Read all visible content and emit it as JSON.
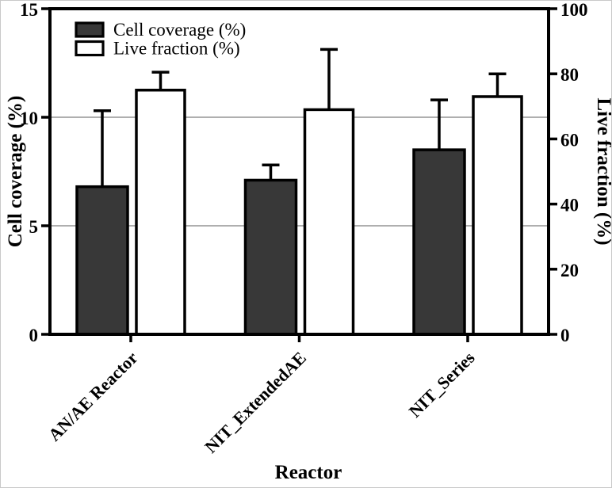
{
  "chart_data": {
    "type": "bar",
    "title": "",
    "xlabel": "Reactor",
    "ylabel_left": "Cell coverage (%)",
    "ylabel_right": "Live fraction (%)",
    "categories": [
      "AN/AE Reactor",
      "NIT_ExtendedAE",
      "NIT_Series"
    ],
    "axes": {
      "left": {
        "min": 0,
        "max": 15,
        "ticks": [
          0,
          5,
          10,
          15
        ]
      },
      "right": {
        "min": 0,
        "max": 100,
        "ticks": [
          0,
          20,
          40,
          60,
          80,
          100
        ]
      }
    },
    "gridlines_at_left_values": [
      5,
      10
    ],
    "grid": true,
    "legend_position": "top-left",
    "series": [
      {
        "name": "Cell coverage (%)",
        "axis": "left",
        "fill": "#383838",
        "values": [
          6.8,
          7.1,
          8.5
        ],
        "errors_plus": [
          3.5,
          0.7,
          2.3
        ]
      },
      {
        "name": "Live fraction (%)",
        "axis": "right",
        "fill": "#ffffff",
        "values": [
          75,
          69,
          73
        ],
        "errors_plus": [
          5.5,
          18.5,
          7
        ]
      }
    ]
  },
  "colors": {
    "bar_dark": "#383838",
    "bar_light": "#ffffff",
    "stroke": "#000000",
    "grid": "#7f7f7f",
    "background": "#ffffff"
  }
}
